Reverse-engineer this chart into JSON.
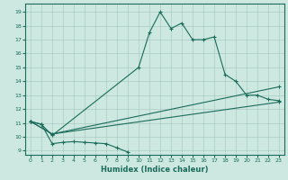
{
  "title": "",
  "xlabel": "Humidex (Indice chaleur)",
  "bg_color": "#cce8e0",
  "grid_color": "#aaccc4",
  "line_color": "#1a6b5a",
  "x_ticks": [
    0,
    1,
    2,
    3,
    4,
    5,
    6,
    7,
    8,
    9,
    10,
    11,
    12,
    13,
    14,
    15,
    16,
    17,
    18,
    19,
    20,
    21,
    22,
    23
  ],
  "y_ticks": [
    9,
    10,
    11,
    12,
    13,
    14,
    15,
    16,
    17,
    18,
    19
  ],
  "ylim": [
    8.7,
    19.6
  ],
  "xlim": [
    -0.5,
    23.5
  ],
  "series": [
    {
      "x": [
        0,
        1,
        2,
        10,
        11,
        12,
        13,
        14,
        15,
        16,
        17,
        18,
        19,
        20,
        21,
        22,
        23
      ],
      "y": [
        11.1,
        10.9,
        10.1,
        15.0,
        17.5,
        19.0,
        17.8,
        18.2,
        17.0,
        17.0,
        17.2,
        14.5,
        14.0,
        13.0,
        13.0,
        12.7,
        12.6
      ]
    },
    {
      "x": [
        0,
        2,
        23
      ],
      "y": [
        11.1,
        10.2,
        13.6
      ]
    },
    {
      "x": [
        0,
        2,
        23
      ],
      "y": [
        11.1,
        10.2,
        12.5
      ]
    },
    {
      "x": [
        0,
        1,
        2,
        3,
        4,
        5,
        6,
        7,
        8,
        9
      ],
      "y": [
        11.1,
        10.9,
        9.5,
        9.6,
        9.65,
        9.6,
        9.55,
        9.5,
        9.2,
        8.9
      ]
    }
  ]
}
